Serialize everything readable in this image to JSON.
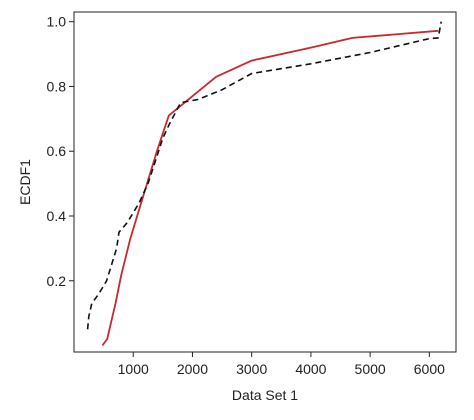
{
  "chart_data": {
    "type": "line",
    "xlabel": "Data Set 1",
    "ylabel": "ECDF1",
    "xlim": [
      0,
      6450
    ],
    "ylim": [
      -0.02,
      1.03
    ],
    "xticks": [
      1000,
      2000,
      3000,
      4000,
      5000,
      6000
    ],
    "yticks": [
      0.2,
      0.4,
      0.6,
      0.8,
      1.0
    ],
    "xtick_labels": [
      "1000",
      "2000",
      "3000",
      "4000",
      "5000",
      "6000"
    ],
    "ytick_labels": [
      "0.2",
      "0.4",
      "0.6",
      "0.8",
      "1.0"
    ],
    "grid": false,
    "series": [
      {
        "style": "solid",
        "color": "#c8282e",
        "points": [
          [
            480,
            0.0
          ],
          [
            560,
            0.02
          ],
          [
            700,
            0.13
          ],
          [
            800,
            0.22
          ],
          [
            950,
            0.33
          ],
          [
            1150,
            0.45
          ],
          [
            1400,
            0.6
          ],
          [
            1600,
            0.71
          ],
          [
            2000,
            0.77
          ],
          [
            2400,
            0.83
          ],
          [
            3000,
            0.88
          ],
          [
            4000,
            0.92
          ],
          [
            4700,
            0.95
          ],
          [
            5500,
            0.962
          ],
          [
            6150,
            0.972
          ]
        ]
      },
      {
        "style": "dashed",
        "color": "#111111",
        "points": [
          [
            230,
            0.05
          ],
          [
            250,
            0.09
          ],
          [
            300,
            0.13
          ],
          [
            420,
            0.16
          ],
          [
            550,
            0.2
          ],
          [
            720,
            0.3
          ],
          [
            760,
            0.35
          ],
          [
            900,
            0.38
          ],
          [
            1100,
            0.44
          ],
          [
            1250,
            0.5
          ],
          [
            1500,
            0.64
          ],
          [
            1600,
            0.68
          ],
          [
            1800,
            0.75
          ],
          [
            2100,
            0.76
          ],
          [
            2500,
            0.79
          ],
          [
            3000,
            0.84
          ],
          [
            4000,
            0.87
          ],
          [
            5000,
            0.905
          ],
          [
            6000,
            0.948
          ],
          [
            6150,
            0.95
          ],
          [
            6200,
            1.0
          ]
        ]
      }
    ]
  }
}
